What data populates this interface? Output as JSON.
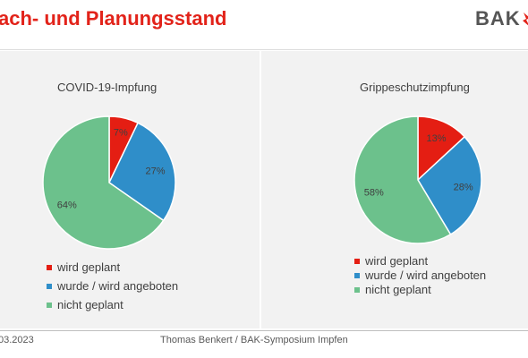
{
  "header": {
    "title": "ach- und Planungsstand",
    "logo_text": "BAK"
  },
  "colors": {
    "title_red": "#e2231a",
    "planned": "#e41e13",
    "offered": "#2f8ec9",
    "not_planned": "#6cc18c"
  },
  "chart_data": [
    {
      "type": "pie",
      "title": "COVID-19-Impfung",
      "slices": [
        {
          "label": "wird geplant",
          "value": 7,
          "display": "7%",
          "color": "#e41e13"
        },
        {
          "label": "wurde / wird angeboten",
          "value": 27,
          "display": "27%",
          "color": "#2f8ec9"
        },
        {
          "label": "nicht geplant",
          "value": 64,
          "display": "64%",
          "color": "#6cc18c"
        }
      ],
      "legend_placement": "bottom"
    },
    {
      "type": "pie",
      "title": "Grippeschutzimpfung",
      "slices": [
        {
          "label": "wird geplant",
          "value": 13,
          "display": "13%",
          "color": "#e41e13"
        },
        {
          "label": "wurde / wird angeboten",
          "value": 28,
          "display": "28%",
          "color": "#2f8ec9"
        },
        {
          "label": "nicht geplant",
          "value": 58,
          "display": "58%",
          "color": "#6cc18c"
        }
      ],
      "legend_placement": "bottom"
    }
  ],
  "footer": {
    "date": "03.2023",
    "text": "Thomas Benkert / BAK-Symposium Impfen"
  }
}
